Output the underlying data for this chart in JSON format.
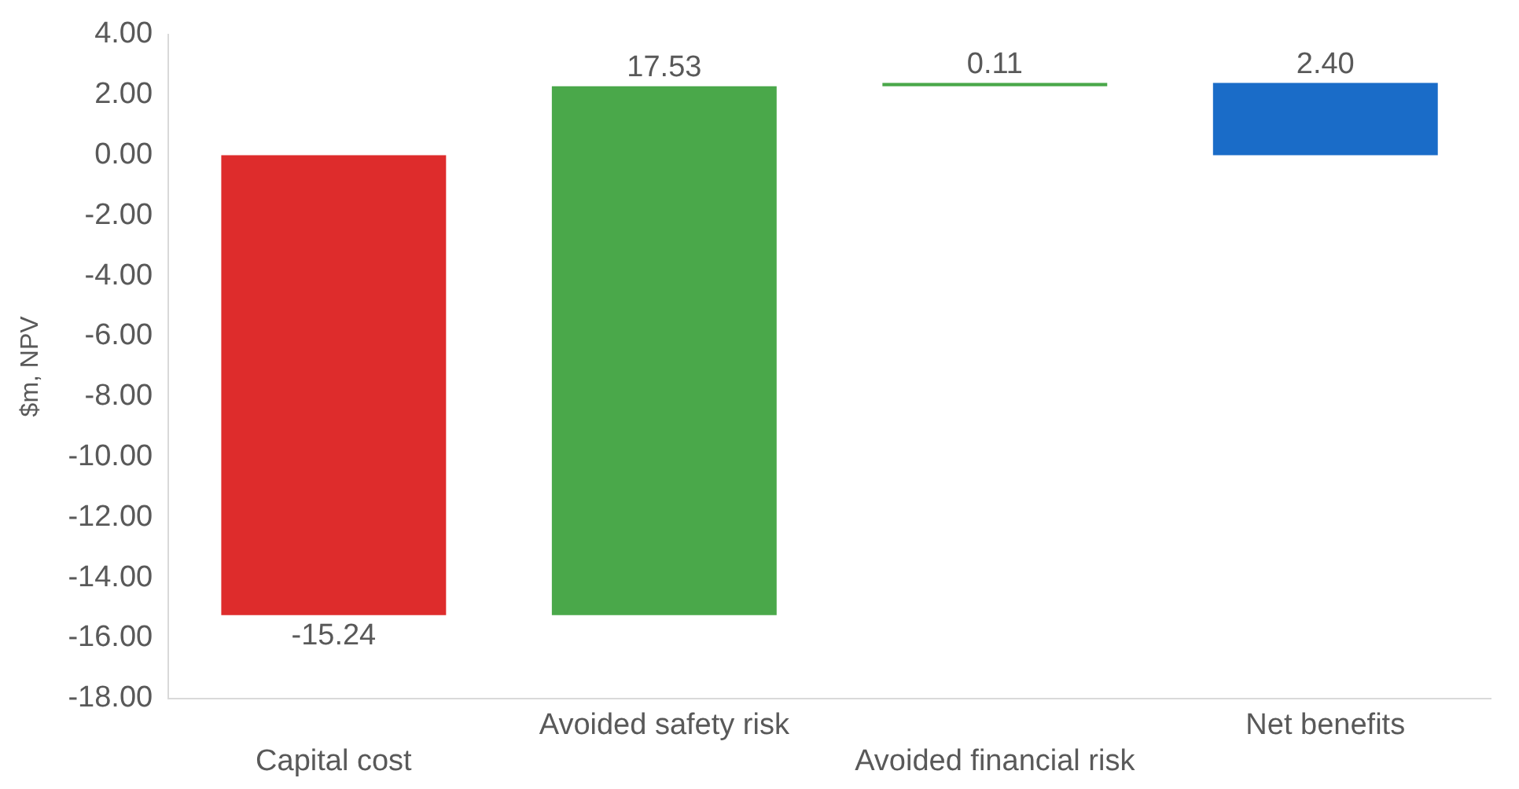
{
  "chart_data": {
    "type": "bar",
    "ylabel": "$m, NPV",
    "categories": [
      "Capital cost",
      "Avoided safety risk",
      "Avoided financial risk",
      "Net benefits"
    ],
    "values": [
      -15.24,
      17.53,
      0.11,
      2.4
    ],
    "base": [
      0,
      -15.24,
      2.29,
      0
    ],
    "colors": [
      "#de2c2c",
      "#4aa84a",
      "#4aa84a",
      "#1a6cc8"
    ],
    "value_labels": [
      "-15.24",
      "17.53",
      "0.11",
      "2.40"
    ],
    "ylim": [
      -18,
      4
    ],
    "yticks": [
      {
        "value": 4,
        "label": "4.00"
      },
      {
        "value": 2,
        "label": "2.00"
      },
      {
        "value": 0,
        "label": "0.00"
      },
      {
        "value": -2,
        "label": "-2.00"
      },
      {
        "value": -4,
        "label": "-4.00"
      },
      {
        "value": -6,
        "label": "-6.00"
      },
      {
        "value": -8,
        "label": "-8.00"
      },
      {
        "value": -10,
        "label": "-10.00"
      },
      {
        "value": -12,
        "label": "-12.00"
      },
      {
        "value": -14,
        "label": "-14.00"
      },
      {
        "value": -16,
        "label": "-16.00"
      },
      {
        "value": -18,
        "label": "-18.00"
      }
    ],
    "grid": false,
    "legend": false
  }
}
